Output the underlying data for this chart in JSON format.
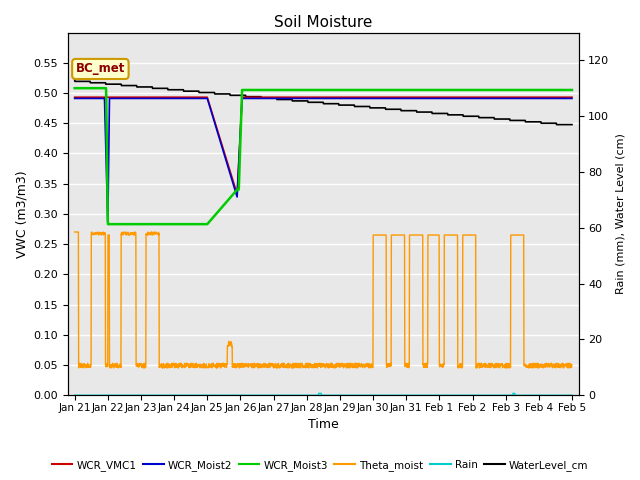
{
  "title": "Soil Moisture",
  "xlabel": "Time",
  "ylabel_left": "VWC (m3/m3)",
  "ylabel_right": "Rain (mm), Water Level (cm)",
  "ylim_left": [
    0.0,
    0.6
  ],
  "ylim_right": [
    0,
    130
  ],
  "xlim": [
    -0.2,
    15.2
  ],
  "yticks_left": [
    0.0,
    0.05,
    0.1,
    0.15,
    0.2,
    0.25,
    0.3,
    0.35,
    0.4,
    0.45,
    0.5,
    0.55
  ],
  "yticks_right": [
    0,
    20,
    40,
    60,
    80,
    100,
    120
  ],
  "xtick_labels": [
    "Jan 21",
    "Jan 22",
    "Jan 23",
    "Jan 24",
    "Jan 25",
    "Jan 26",
    "Jan 27",
    "Jan 28",
    "Jan 29",
    "Jan 30",
    "Jan 31",
    "Feb 1",
    "Feb 2",
    "Feb 3",
    "Feb 4",
    "Feb 5"
  ],
  "xtick_positions": [
    0,
    1,
    2,
    3,
    4,
    5,
    6,
    7,
    8,
    9,
    10,
    11,
    12,
    13,
    14,
    15
  ],
  "annotation_text": "BC_met",
  "background_color": "#e8e8e8",
  "grid_color": "#ffffff",
  "colors": {
    "WCR_VMC1": "#cc0000",
    "WCR_Moist2": "#0000cc",
    "WCR_Moist3": "#00cc00",
    "Theta_moist": "#ff9900",
    "Rain": "#00cccc",
    "WaterLevel_cm": "#000000"
  }
}
